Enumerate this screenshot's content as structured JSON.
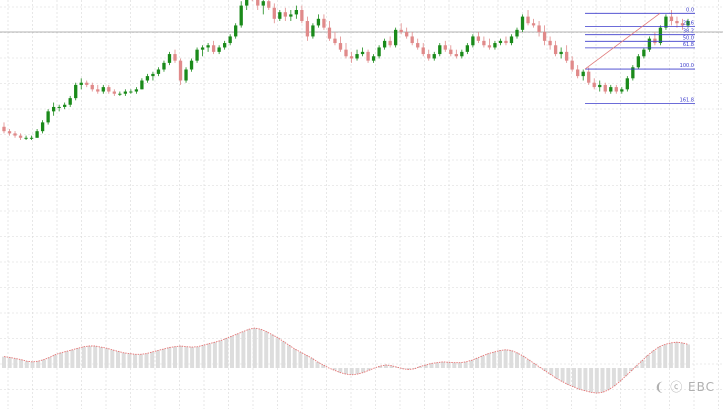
{
  "chart_data": {
    "type": "candlestick",
    "y_axis_range": [
      -0.95,
      0.82
    ],
    "grid": true,
    "reference_price": 0.72,
    "colors": {
      "up": "#1a8a1a",
      "down": "#e08a8a",
      "fib": "#3b3bcc",
      "trend": "#e07a7a",
      "reference": "#9a9a9a",
      "oscillator_line": "#e57373",
      "oscillator_hist": "#dddddd"
    },
    "candles": [
      [
        0.29,
        0.31,
        0.26,
        0.27
      ],
      [
        0.27,
        0.28,
        0.25,
        0.26
      ],
      [
        0.26,
        0.27,
        0.24,
        0.25
      ],
      [
        0.25,
        0.26,
        0.23,
        0.24
      ],
      [
        0.24,
        0.25,
        0.23,
        0.24
      ],
      [
        0.24,
        0.25,
        0.23,
        0.24
      ],
      [
        0.24,
        0.28,
        0.24,
        0.27
      ],
      [
        0.27,
        0.32,
        0.26,
        0.31
      ],
      [
        0.31,
        0.37,
        0.3,
        0.36
      ],
      [
        0.36,
        0.4,
        0.34,
        0.38
      ],
      [
        0.38,
        0.39,
        0.36,
        0.38
      ],
      [
        0.38,
        0.4,
        0.37,
        0.39
      ],
      [
        0.39,
        0.43,
        0.38,
        0.42
      ],
      [
        0.42,
        0.49,
        0.41,
        0.48
      ],
      [
        0.48,
        0.51,
        0.46,
        0.49
      ],
      [
        0.49,
        0.5,
        0.47,
        0.48
      ],
      [
        0.48,
        0.49,
        0.45,
        0.46
      ],
      [
        0.46,
        0.48,
        0.44,
        0.45
      ],
      [
        0.45,
        0.48,
        0.44,
        0.47
      ],
      [
        0.47,
        0.48,
        0.44,
        0.45
      ],
      [
        0.45,
        0.46,
        0.43,
        0.44
      ],
      [
        0.44,
        0.45,
        0.43,
        0.44
      ],
      [
        0.44,
        0.46,
        0.43,
        0.45
      ],
      [
        0.45,
        0.46,
        0.44,
        0.45
      ],
      [
        0.45,
        0.47,
        0.44,
        0.46
      ],
      [
        0.46,
        0.51,
        0.46,
        0.5
      ],
      [
        0.5,
        0.53,
        0.49,
        0.52
      ],
      [
        0.52,
        0.54,
        0.5,
        0.53
      ],
      [
        0.53,
        0.56,
        0.52,
        0.55
      ],
      [
        0.55,
        0.59,
        0.54,
        0.58
      ],
      [
        0.58,
        0.63,
        0.57,
        0.62
      ],
      [
        0.62,
        0.64,
        0.58,
        0.59
      ],
      [
        0.59,
        0.6,
        0.48,
        0.5
      ],
      [
        0.5,
        0.56,
        0.49,
        0.55
      ],
      [
        0.55,
        0.6,
        0.54,
        0.59
      ],
      [
        0.59,
        0.65,
        0.58,
        0.64
      ],
      [
        0.64,
        0.66,
        0.61,
        0.65
      ],
      [
        0.65,
        0.67,
        0.63,
        0.66
      ],
      [
        0.66,
        0.68,
        0.62,
        0.63
      ],
      [
        0.63,
        0.66,
        0.62,
        0.65
      ],
      [
        0.65,
        0.68,
        0.64,
        0.67
      ],
      [
        0.67,
        0.71,
        0.66,
        0.7
      ],
      [
        0.7,
        0.76,
        0.69,
        0.75
      ],
      [
        0.75,
        0.86,
        0.74,
        0.84
      ],
      [
        0.84,
        0.93,
        0.82,
        0.91
      ],
      [
        0.91,
        0.95,
        0.86,
        0.88
      ],
      [
        0.88,
        0.9,
        0.82,
        0.84
      ],
      [
        0.84,
        0.87,
        0.8,
        0.86
      ],
      [
        0.86,
        0.88,
        0.82,
        0.83
      ],
      [
        0.83,
        0.85,
        0.76,
        0.78
      ],
      [
        0.78,
        0.82,
        0.77,
        0.81
      ],
      [
        0.81,
        0.83,
        0.77,
        0.79
      ],
      [
        0.79,
        0.82,
        0.77,
        0.8
      ],
      [
        0.8,
        0.84,
        0.78,
        0.82
      ],
      [
        0.82,
        0.84,
        0.76,
        0.77
      ],
      [
        0.77,
        0.79,
        0.68,
        0.7
      ],
      [
        0.7,
        0.76,
        0.69,
        0.75
      ],
      [
        0.75,
        0.8,
        0.74,
        0.78
      ],
      [
        0.78,
        0.8,
        0.73,
        0.74
      ],
      [
        0.74,
        0.77,
        0.68,
        0.69
      ],
      [
        0.69,
        0.72,
        0.66,
        0.67
      ],
      [
        0.67,
        0.7,
        0.63,
        0.64
      ],
      [
        0.64,
        0.67,
        0.6,
        0.61
      ],
      [
        0.61,
        0.63,
        0.58,
        0.6
      ],
      [
        0.6,
        0.64,
        0.59,
        0.62
      ],
      [
        0.62,
        0.65,
        0.61,
        0.63
      ],
      [
        0.63,
        0.64,
        0.58,
        0.59
      ],
      [
        0.59,
        0.62,
        0.58,
        0.61
      ],
      [
        0.61,
        0.66,
        0.6,
        0.65
      ],
      [
        0.65,
        0.69,
        0.64,
        0.68
      ],
      [
        0.68,
        0.7,
        0.65,
        0.66
      ],
      [
        0.66,
        0.74,
        0.65,
        0.73
      ],
      [
        0.73,
        0.76,
        0.71,
        0.72
      ],
      [
        0.72,
        0.74,
        0.69,
        0.7
      ],
      [
        0.7,
        0.72,
        0.66,
        0.67
      ],
      [
        0.67,
        0.69,
        0.64,
        0.65
      ],
      [
        0.65,
        0.67,
        0.61,
        0.62
      ],
      [
        0.62,
        0.64,
        0.59,
        0.6
      ],
      [
        0.6,
        0.63,
        0.59,
        0.62
      ],
      [
        0.62,
        0.67,
        0.61,
        0.66
      ],
      [
        0.66,
        0.68,
        0.63,
        0.64
      ],
      [
        0.64,
        0.66,
        0.61,
        0.62
      ],
      [
        0.62,
        0.64,
        0.6,
        0.61
      ],
      [
        0.61,
        0.64,
        0.6,
        0.63
      ],
      [
        0.63,
        0.67,
        0.62,
        0.66
      ],
      [
        0.66,
        0.71,
        0.65,
        0.7
      ],
      [
        0.7,
        0.72,
        0.67,
        0.68
      ],
      [
        0.68,
        0.7,
        0.65,
        0.66
      ],
      [
        0.66,
        0.69,
        0.64,
        0.65
      ],
      [
        0.65,
        0.68,
        0.64,
        0.67
      ],
      [
        0.67,
        0.69,
        0.66,
        0.68
      ],
      [
        0.68,
        0.7,
        0.66,
        0.67
      ],
      [
        0.67,
        0.71,
        0.66,
        0.7
      ],
      [
        0.7,
        0.74,
        0.69,
        0.73
      ],
      [
        0.73,
        0.8,
        0.72,
        0.79
      ],
      [
        0.79,
        0.82,
        0.75,
        0.76
      ],
      [
        0.76,
        0.78,
        0.74,
        0.75
      ],
      [
        0.75,
        0.77,
        0.7,
        0.72
      ],
      [
        0.72,
        0.75,
        0.66,
        0.68
      ],
      [
        0.68,
        0.7,
        0.64,
        0.66
      ],
      [
        0.66,
        0.68,
        0.61,
        0.62
      ],
      [
        0.62,
        0.65,
        0.6,
        0.63
      ],
      [
        0.63,
        0.66,
        0.58,
        0.59
      ],
      [
        0.59,
        0.61,
        0.54,
        0.55
      ],
      [
        0.55,
        0.57,
        0.51,
        0.52
      ],
      [
        0.52,
        0.55,
        0.5,
        0.54
      ],
      [
        0.54,
        0.56,
        0.48,
        0.49
      ],
      [
        0.49,
        0.51,
        0.46,
        0.47
      ],
      [
        0.47,
        0.5,
        0.45,
        0.48
      ],
      [
        0.48,
        0.49,
        0.44,
        0.45
      ],
      [
        0.45,
        0.48,
        0.44,
        0.47
      ],
      [
        0.47,
        0.48,
        0.44,
        0.45
      ],
      [
        0.45,
        0.47,
        0.44,
        0.46
      ],
      [
        0.46,
        0.52,
        0.45,
        0.51
      ],
      [
        0.51,
        0.57,
        0.5,
        0.56
      ],
      [
        0.56,
        0.62,
        0.55,
        0.61
      ],
      [
        0.61,
        0.65,
        0.6,
        0.64
      ],
      [
        0.64,
        0.7,
        0.63,
        0.69
      ],
      [
        0.69,
        0.72,
        0.66,
        0.67
      ],
      [
        0.67,
        0.75,
        0.66,
        0.74
      ],
      [
        0.74,
        0.8,
        0.73,
        0.79
      ],
      [
        0.79,
        0.82,
        0.75,
        0.77
      ],
      [
        0.77,
        0.79,
        0.74,
        0.76
      ],
      [
        0.76,
        0.78,
        0.73,
        0.75
      ],
      [
        0.75,
        0.78,
        0.74,
        0.77
      ]
    ],
    "fibonacci_levels": [
      {
        "label": "0.0",
        "value": 0.805
      },
      {
        "label": "23.6",
        "value": 0.745
      },
      {
        "label": "38.2",
        "value": 0.708
      },
      {
        "label": "50.0",
        "value": 0.678
      },
      {
        "label": "61.8",
        "value": 0.648
      },
      {
        "label": "100.0",
        "value": 0.552
      },
      {
        "label": "161.8",
        "value": 0.395
      }
    ],
    "oscillator": [
      0.3,
      0.28,
      0.25,
      0.22,
      0.18,
      0.16,
      0.18,
      0.22,
      0.28,
      0.35,
      0.4,
      0.44,
      0.48,
      0.52,
      0.56,
      0.58,
      0.58,
      0.55,
      0.52,
      0.48,
      0.44,
      0.4,
      0.38,
      0.36,
      0.36,
      0.38,
      0.42,
      0.46,
      0.5,
      0.54,
      0.56,
      0.58,
      0.56,
      0.55,
      0.56,
      0.6,
      0.64,
      0.68,
      0.72,
      0.78,
      0.84,
      0.9,
      0.96,
      1.02,
      1.05,
      1.02,
      0.96,
      0.88,
      0.8,
      0.7,
      0.6,
      0.5,
      0.42,
      0.34,
      0.26,
      0.16,
      0.08,
      0.0,
      -0.06,
      -0.12,
      -0.16,
      -0.18,
      -0.16,
      -0.12,
      -0.06,
      0.0,
      0.05,
      0.08,
      0.06,
      0.02,
      -0.02,
      -0.04,
      -0.02,
      0.04,
      0.08,
      0.12,
      0.14,
      0.16,
      0.15,
      0.14,
      0.14,
      0.16,
      0.2,
      0.26,
      0.32,
      0.38,
      0.42,
      0.46,
      0.48,
      0.46,
      0.4,
      0.32,
      0.22,
      0.12,
      0.02,
      -0.08,
      -0.18,
      -0.28,
      -0.36,
      -0.44,
      -0.5,
      -0.56,
      -0.6,
      -0.64,
      -0.66,
      -0.64,
      -0.58,
      -0.48,
      -0.36,
      -0.22,
      -0.08,
      0.06,
      0.2,
      0.34,
      0.46,
      0.56,
      0.62,
      0.66,
      0.68,
      0.66,
      0.62
    ]
  },
  "watermark": {
    "logo_name": "ebc-logo"
  }
}
